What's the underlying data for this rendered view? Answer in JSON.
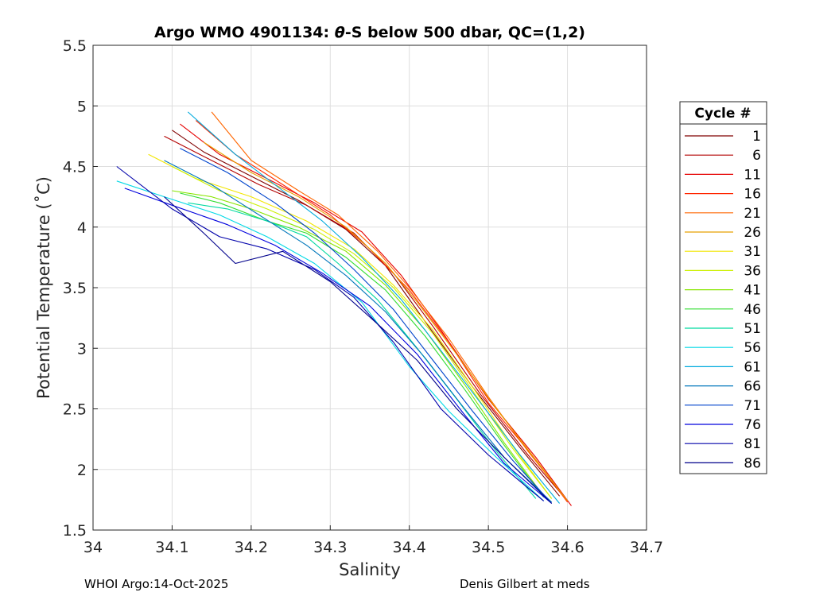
{
  "chart_data": {
    "type": "line",
    "title_prefix": "Argo WMO 4901134: ",
    "title_theta": "θ",
    "title_suffix": "-S below 500 dbar,  QC=(1,2)",
    "xlabel": "Salinity",
    "ylabel": "Potential Temperature (˚C)",
    "xlim": [
      34.0,
      34.7
    ],
    "ylim": [
      1.5,
      5.5
    ],
    "xticks": [
      34,
      34.1,
      34.2,
      34.3,
      34.4,
      34.5,
      34.6,
      34.7
    ],
    "xtick_labels": [
      "34",
      "34.1",
      "34.2",
      "34.3",
      "34.4",
      "34.5",
      "34.6",
      "34.7"
    ],
    "yticks": [
      1.5,
      2,
      2.5,
      3,
      3.5,
      4,
      4.5,
      5,
      5.5
    ],
    "ytick_labels": [
      "1.5",
      "2",
      "2.5",
      "3",
      "3.5",
      "4",
      "4.5",
      "5",
      "5.5"
    ],
    "grid": true,
    "legend": {
      "title": "Cycle #",
      "position": "right",
      "entries": [
        {
          "label": "1",
          "color": "#800000"
        },
        {
          "label": "6",
          "color": "#b30000"
        },
        {
          "label": "11",
          "color": "#e60000"
        },
        {
          "label": "16",
          "color": "#ff2600"
        },
        {
          "label": "21",
          "color": "#ff6600"
        },
        {
          "label": "26",
          "color": "#e6a000"
        },
        {
          "label": "31",
          "color": "#f2e600"
        },
        {
          "label": "36",
          "color": "#ccf000"
        },
        {
          "label": "41",
          "color": "#88e600"
        },
        {
          "label": "46",
          "color": "#33dd33"
        },
        {
          "label": "51",
          "color": "#00d9a0"
        },
        {
          "label": "56",
          "color": "#00d9e6"
        },
        {
          "label": "61",
          "color": "#00aadd"
        },
        {
          "label": "66",
          "color": "#0077bb"
        },
        {
          "label": "71",
          "color": "#0044cc"
        },
        {
          "label": "76",
          "color": "#0000dd"
        },
        {
          "label": "81",
          "color": "#0000aa"
        },
        {
          "label": "86",
          "color": "#00008b"
        }
      ]
    },
    "series": [
      {
        "name": "1",
        "color": "#800000",
        "x": [
          34.1,
          34.14,
          34.2,
          34.26,
          34.32,
          34.37,
          34.42,
          34.48,
          34.54,
          34.59
        ],
        "y": [
          4.8,
          4.62,
          4.42,
          4.22,
          3.98,
          3.68,
          3.22,
          2.68,
          2.18,
          1.78
        ]
      },
      {
        "name": "6",
        "color": "#b30000",
        "x": [
          34.09,
          34.15,
          34.21,
          34.27,
          34.33,
          34.38,
          34.43,
          34.49,
          34.55,
          34.6
        ],
        "y": [
          4.75,
          4.55,
          4.35,
          4.18,
          3.95,
          3.62,
          3.18,
          2.62,
          2.12,
          1.74
        ]
      },
      {
        "name": "11",
        "color": "#e60000",
        "x": [
          34.11,
          34.16,
          34.22,
          34.28,
          34.34,
          34.39,
          34.44,
          34.5,
          34.56,
          34.605
        ],
        "y": [
          4.85,
          4.6,
          4.4,
          4.2,
          3.96,
          3.6,
          3.15,
          2.58,
          2.1,
          1.7
        ]
      },
      {
        "name": "16",
        "color": "#ff2600",
        "x": [
          34.13,
          34.18,
          34.24,
          34.3,
          34.35,
          34.4,
          34.45,
          34.5,
          34.56,
          34.6
        ],
        "y": [
          4.88,
          4.6,
          4.35,
          4.1,
          3.82,
          3.48,
          3.05,
          2.55,
          2.08,
          1.73
        ]
      },
      {
        "name": "21",
        "color": "#ff6600",
        "x": [
          34.15,
          34.2,
          34.26,
          34.31,
          34.36,
          34.4,
          34.45,
          34.5,
          34.55,
          34.6
        ],
        "y": [
          4.95,
          4.55,
          4.3,
          4.1,
          3.8,
          3.5,
          3.08,
          2.6,
          2.15,
          1.74
        ]
      },
      {
        "name": "26",
        "color": "#e6a000",
        "x": [
          34.14,
          34.2,
          34.26,
          34.32,
          34.37,
          34.41,
          34.46,
          34.51,
          34.56,
          34.6
        ],
        "y": [
          4.7,
          4.45,
          4.25,
          4.0,
          3.7,
          3.38,
          2.95,
          2.5,
          2.08,
          1.74
        ]
      },
      {
        "name": "31",
        "color": "#f2e600",
        "x": [
          34.07,
          34.13,
          34.2,
          34.27,
          34.33,
          34.38,
          34.43,
          34.48,
          34.53,
          34.58
        ],
        "y": [
          4.6,
          4.4,
          4.25,
          4.05,
          3.82,
          3.52,
          3.15,
          2.68,
          2.2,
          1.76
        ]
      },
      {
        "name": "36",
        "color": "#ccf000",
        "x": [
          34.1,
          34.16,
          34.22,
          34.28,
          34.33,
          34.38,
          34.43,
          34.48,
          34.53,
          34.58
        ],
        "y": [
          4.5,
          4.3,
          4.15,
          3.98,
          3.78,
          3.5,
          3.12,
          2.65,
          2.18,
          1.76
        ]
      },
      {
        "name": "41",
        "color": "#88e600",
        "x": [
          34.1,
          34.15,
          34.2,
          34.26,
          34.32,
          34.37,
          34.42,
          34.47,
          34.52,
          34.57
        ],
        "y": [
          4.3,
          4.25,
          4.15,
          4.0,
          3.8,
          3.52,
          3.15,
          2.7,
          2.22,
          1.78
        ]
      },
      {
        "name": "46",
        "color": "#33dd33",
        "x": [
          34.11,
          34.16,
          34.22,
          34.27,
          34.32,
          34.37,
          34.42,
          34.47,
          34.52,
          34.57
        ],
        "y": [
          4.28,
          4.2,
          4.05,
          3.95,
          3.75,
          3.48,
          3.1,
          2.66,
          2.2,
          1.77
        ]
      },
      {
        "name": "51",
        "color": "#00d9a0",
        "x": [
          34.12,
          34.17,
          34.22,
          34.27,
          34.31,
          34.36,
          34.41,
          34.46,
          34.51,
          34.56
        ],
        "y": [
          4.2,
          4.15,
          4.05,
          3.92,
          3.7,
          3.4,
          3.0,
          2.58,
          2.15,
          1.76
        ]
      },
      {
        "name": "56",
        "color": "#00d9e6",
        "x": [
          34.03,
          34.09,
          34.16,
          34.22,
          34.28,
          34.34,
          34.4,
          34.45,
          34.51,
          34.57
        ],
        "y": [
          4.38,
          4.25,
          4.1,
          3.92,
          3.7,
          3.38,
          2.85,
          2.48,
          2.1,
          1.74
        ]
      },
      {
        "name": "61",
        "color": "#00aadd",
        "x": [
          34.12,
          34.18,
          34.24,
          34.29,
          34.34,
          34.39,
          34.44,
          34.49,
          34.54,
          34.59
        ],
        "y": [
          4.95,
          4.6,
          4.3,
          4.05,
          3.75,
          3.4,
          2.98,
          2.55,
          2.12,
          1.72
        ]
      },
      {
        "name": "66",
        "color": "#0077bb",
        "x": [
          34.09,
          34.15,
          34.21,
          34.27,
          34.32,
          34.37,
          34.42,
          34.47,
          34.52,
          34.58
        ],
        "y": [
          4.55,
          4.35,
          4.1,
          3.85,
          3.6,
          3.3,
          2.92,
          2.5,
          2.1,
          1.73
        ]
      },
      {
        "name": "71",
        "color": "#0044cc",
        "x": [
          34.11,
          34.17,
          34.23,
          34.28,
          34.33,
          34.38,
          34.43,
          34.48,
          34.53,
          34.58
        ],
        "y": [
          4.65,
          4.45,
          4.2,
          3.95,
          3.65,
          3.32,
          2.9,
          2.48,
          2.08,
          1.72
        ]
      },
      {
        "name": "76",
        "color": "#0000dd",
        "x": [
          34.04,
          34.1,
          34.17,
          34.23,
          34.29,
          34.35,
          34.41,
          34.47,
          34.52,
          34.58
        ],
        "y": [
          4.32,
          4.18,
          4.02,
          3.85,
          3.62,
          3.35,
          2.95,
          2.45,
          2.05,
          1.72
        ]
      },
      {
        "name": "81",
        "color": "#0000aa",
        "x": [
          34.03,
          34.1,
          34.16,
          34.22,
          34.28,
          34.33,
          34.38,
          34.44,
          34.5,
          34.57
        ],
        "y": [
          4.5,
          4.15,
          3.92,
          3.82,
          3.65,
          3.42,
          3.05,
          2.5,
          2.12,
          1.74
        ]
      },
      {
        "name": "86",
        "color": "#00008b",
        "x": [
          34.09,
          34.14,
          34.18,
          34.24,
          34.3,
          34.36,
          34.41,
          34.46,
          34.52,
          34.58
        ],
        "y": [
          4.25,
          3.95,
          3.7,
          3.8,
          3.55,
          3.2,
          2.9,
          2.5,
          2.1,
          1.72
        ]
      }
    ]
  },
  "footer": {
    "left": "WHOI Argo:14-Oct-2025",
    "right": "Denis Gilbert at meds"
  }
}
